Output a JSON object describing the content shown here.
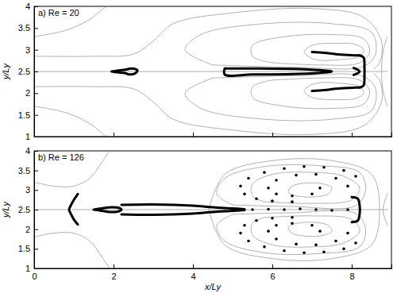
{
  "chart_data": [
    {
      "type": "line",
      "title": "a) Re = 20",
      "y_label": "y/Ly",
      "xlim": [
        0,
        9
      ],
      "ylim": [
        1,
        4
      ],
      "xticks": [
        0,
        2,
        4,
        6,
        8
      ],
      "yticks": [
        1,
        1.5,
        2,
        2.5,
        3,
        3.5,
        4
      ],
      "tick_labels": "y",
      "series": [
        {
          "type": "line",
          "color": "#a8a8a8",
          "line_style": "solid",
          "x": [
            0,
            8.9
          ],
          "values": [
            2.5,
            2.5
          ]
        },
        {
          "type": "line",
          "color": "#a8a8a8",
          "line_style": "solid",
          "x": [
            7.3,
            7.8,
            8.2,
            8.3,
            8.1,
            7.6,
            7.0,
            6.8,
            7.0,
            7.3
          ],
          "values": [
            2.75,
            2.78,
            2.85,
            3.0,
            3.12,
            3.15,
            3.1,
            2.95,
            2.8,
            2.75
          ]
        },
        {
          "type": "line",
          "color": "#a8a8a8",
          "line_style": "solid",
          "x": [
            7.3,
            7.8,
            8.2,
            8.3,
            8.1,
            7.6,
            7.0,
            6.8,
            7.0,
            7.3
          ],
          "values": [
            2.25,
            2.22,
            2.15,
            2.0,
            1.88,
            1.85,
            1.9,
            2.05,
            2.2,
            2.25
          ]
        },
        {
          "type": "line",
          "color": "#a8a8a8",
          "line_style": "solid",
          "x": [
            6.0,
            7.2,
            8.2,
            8.45,
            8.3,
            7.5,
            6.3,
            5.5,
            5.5,
            6.0
          ],
          "values": [
            2.7,
            2.65,
            2.7,
            2.95,
            3.25,
            3.35,
            3.3,
            3.1,
            2.85,
            2.7
          ]
        },
        {
          "type": "line",
          "color": "#a8a8a8",
          "line_style": "solid",
          "x": [
            6.0,
            7.2,
            8.2,
            8.45,
            8.3,
            7.5,
            6.3,
            5.5,
            5.5,
            6.0
          ],
          "values": [
            2.3,
            2.35,
            2.3,
            2.05,
            1.75,
            1.65,
            1.7,
            1.9,
            2.15,
            2.3
          ]
        },
        {
          "type": "line",
          "color": "#a8a8a8",
          "line_style": "solid",
          "x": [
            4.5,
            6.5,
            8.3,
            8.6,
            8.5,
            7.5,
            5.8,
            4.2,
            3.8,
            4.5
          ],
          "values": [
            2.65,
            2.6,
            2.62,
            2.9,
            3.4,
            3.6,
            3.6,
            3.35,
            3.0,
            2.65
          ]
        },
        {
          "type": "line",
          "color": "#a8a8a8",
          "line_style": "solid",
          "x": [
            4.5,
            6.5,
            8.3,
            8.6,
            8.5,
            7.5,
            5.8,
            4.2,
            3.8,
            4.5
          ],
          "values": [
            2.35,
            2.4,
            2.38,
            2.1,
            1.6,
            1.4,
            1.4,
            1.65,
            2.0,
            2.35
          ]
        },
        {
          "type": "line",
          "color": "#a8a8a8",
          "line_style": "solid",
          "x": [
            0,
            1.5,
            2.5,
            3.0,
            3.5,
            5.0,
            7.0,
            8.3,
            8.75,
            8.7,
            8.55
          ],
          "values": [
            2.85,
            2.85,
            2.9,
            3.2,
            3.6,
            3.85,
            3.95,
            3.75,
            3.2,
            2.7,
            2.55
          ]
        },
        {
          "type": "line",
          "color": "#a8a8a8",
          "line_style": "solid",
          "x": [
            0,
            1.5,
            2.5,
            3.0,
            3.5,
            5.0,
            7.0,
            8.3,
            8.75,
            8.7,
            8.55
          ],
          "values": [
            2.15,
            2.15,
            2.1,
            1.8,
            1.4,
            1.15,
            1.05,
            1.25,
            1.8,
            2.3,
            2.45
          ]
        },
        {
          "type": "line",
          "color": "#a8a8a8",
          "line_style": "solid",
          "x": [
            0,
            0.8,
            1.4,
            1.8
          ],
          "values": [
            3.3,
            3.45,
            3.7,
            4.0
          ]
        },
        {
          "type": "line",
          "color": "#a8a8a8",
          "line_style": "solid",
          "x": [
            0,
            0.8,
            1.4,
            1.8
          ],
          "values": [
            1.7,
            1.55,
            1.3,
            1.0
          ]
        },
        {
          "type": "line",
          "color": "#a8a8a8",
          "line_style": "solid",
          "x": [
            8.9,
            8.8,
            8.75,
            8.8,
            8.9
          ],
          "values": [
            3.3,
            3.0,
            2.5,
            2.0,
            1.7
          ]
        },
        {
          "type": "line",
          "color": "#000000",
          "line_style": "thick",
          "x": [
            1.95,
            2.1,
            2.3,
            2.45,
            2.6,
            2.55,
            2.4,
            2.3,
            2.1,
            1.95
          ],
          "values": [
            2.5,
            2.52,
            2.54,
            2.57,
            2.53,
            2.46,
            2.43,
            2.46,
            2.48,
            2.5
          ]
        },
        {
          "type": "line",
          "color": "#000000",
          "line_style": "thick",
          "x": [
            4.8,
            5.5,
            6.5,
            7.2,
            7.5,
            7.2,
            6.5,
            5.5,
            4.8,
            4.8
          ],
          "values": [
            2.57,
            2.57,
            2.56,
            2.53,
            2.5,
            2.47,
            2.44,
            2.43,
            2.43,
            2.57
          ]
        },
        {
          "type": "line",
          "color": "#000000",
          "line_style": "thick",
          "x": [
            7.0,
            7.3,
            7.6,
            7.9,
            8.1,
            8.2
          ],
          "values": [
            2.95,
            2.93,
            2.9,
            2.88,
            2.87,
            2.87
          ]
        },
        {
          "type": "line",
          "color": "#000000",
          "line_style": "thick",
          "x": [
            7.0,
            7.3,
            7.6,
            7.9,
            8.1,
            8.2
          ],
          "values": [
            2.05,
            2.07,
            2.1,
            2.12,
            2.13,
            2.13
          ]
        },
        {
          "type": "line",
          "color": "#000000",
          "line_style": "thick",
          "x": [
            8.2,
            8.3,
            8.32,
            8.32,
            8.3,
            8.2
          ],
          "values": [
            2.87,
            2.82,
            2.6,
            2.4,
            2.18,
            2.13
          ]
        },
        {
          "type": "line",
          "color": "#000000",
          "line_style": "thick",
          "x": [
            8.05,
            8.2,
            8.05
          ],
          "values": [
            2.58,
            2.5,
            2.42
          ]
        }
      ]
    },
    {
      "type": "line",
      "title": "b) Re = 126",
      "x_label": "x/Ly",
      "y_label": "y/Ly",
      "xlim": [
        0,
        9
      ],
      "ylim": [
        1,
        4
      ],
      "xticks": [
        0,
        2,
        4,
        6,
        8
      ],
      "yticks": [
        1,
        1.5,
        2,
        2.5,
        3,
        3.5,
        4
      ],
      "series": [
        {
          "type": "line",
          "color": "#a8a8a8",
          "line_style": "solid",
          "x": [
            0,
            8.9
          ],
          "values": [
            2.5,
            2.5
          ]
        },
        {
          "type": "line",
          "color": "#a8a8a8",
          "line_style": "solid",
          "x": [
            6.6,
            7.0,
            7.4,
            7.5,
            7.3,
            6.9,
            6.5,
            6.4,
            6.6
          ],
          "values": [
            2.85,
            2.82,
            2.9,
            3.05,
            3.15,
            3.18,
            3.1,
            2.95,
            2.85
          ]
        },
        {
          "type": "line",
          "color": "#a8a8a8",
          "line_style": "solid",
          "x": [
            6.6,
            7.0,
            7.4,
            7.5,
            7.3,
            6.9,
            6.5,
            6.4,
            6.6
          ],
          "values": [
            2.15,
            2.18,
            2.1,
            1.95,
            1.85,
            1.82,
            1.9,
            2.05,
            2.15
          ]
        },
        {
          "type": "line",
          "color": "#a8a8a8",
          "line_style": "solid",
          "x": [
            5.8,
            7.0,
            8.0,
            8.2,
            7.8,
            7.0,
            6.0,
            5.5,
            5.5,
            5.8
          ],
          "values": [
            2.7,
            2.66,
            2.75,
            3.05,
            3.35,
            3.45,
            3.4,
            3.15,
            2.85,
            2.7
          ]
        },
        {
          "type": "line",
          "color": "#a8a8a8",
          "line_style": "solid",
          "x": [
            5.8,
            7.0,
            8.0,
            8.2,
            7.8,
            7.0,
            6.0,
            5.5,
            5.5,
            5.8
          ],
          "values": [
            2.3,
            2.34,
            2.25,
            1.95,
            1.65,
            1.55,
            1.6,
            1.85,
            2.15,
            2.3
          ]
        },
        {
          "type": "line",
          "color": "#a8a8a8",
          "line_style": "solid",
          "x": [
            5.0,
            6.5,
            8.1,
            8.35,
            8.2,
            7.2,
            5.8,
            4.8,
            4.6,
            5.0
          ],
          "values": [
            2.62,
            2.58,
            2.6,
            3.0,
            3.45,
            3.62,
            3.6,
            3.3,
            2.9,
            2.62
          ]
        },
        {
          "type": "line",
          "color": "#a8a8a8",
          "line_style": "solid",
          "x": [
            5.0,
            6.5,
            8.1,
            8.35,
            8.2,
            7.2,
            5.8,
            4.8,
            4.6,
            5.0
          ],
          "values": [
            2.38,
            2.42,
            2.4,
            2.0,
            1.55,
            1.38,
            1.4,
            1.7,
            2.1,
            2.38
          ]
        },
        {
          "type": "line",
          "color": "#a8a8a8",
          "line_style": "solid",
          "x": [
            4.4,
            4.8,
            6.0,
            7.5,
            8.5,
            8.7,
            8.5,
            7.5,
            6.0,
            4.8,
            4.4
          ],
          "values": [
            2.5,
            3.4,
            3.75,
            3.75,
            3.4,
            2.5,
            1.6,
            1.25,
            1.25,
            1.6,
            2.5
          ]
        },
        {
          "type": "line",
          "color": "#a8a8a8",
          "line_style": "solid",
          "x": [
            0,
            0.5,
            1.0,
            1.4,
            1.7,
            1.9
          ],
          "values": [
            3.2,
            3.1,
            3.1,
            3.3,
            3.7,
            4.0
          ]
        },
        {
          "type": "line",
          "color": "#a8a8a8",
          "line_style": "solid",
          "x": [
            0,
            0.5,
            1.0,
            1.4,
            1.7,
            1.9
          ],
          "values": [
            1.8,
            1.9,
            1.9,
            1.7,
            1.3,
            1.0
          ]
        },
        {
          "type": "line",
          "color": "#a8a8a8",
          "line_style": "solid",
          "x": [
            8.9,
            8.8,
            8.8,
            8.9
          ],
          "values": [
            2.9,
            2.6,
            2.4,
            2.1
          ]
        },
        {
          "type": "line",
          "color": "#000000",
          "line_style": "thick",
          "x": [
            1.1,
            1.0,
            0.92,
            0.88,
            0.92,
            1.0,
            1.1
          ],
          "values": [
            2.9,
            2.75,
            2.6,
            2.5,
            2.4,
            2.25,
            2.12
          ]
        },
        {
          "type": "line",
          "color": "#000000",
          "line_style": "thick",
          "x": [
            1.5,
            1.7,
            1.95,
            2.15,
            2.2,
            2.1,
            1.9,
            1.7,
            1.5
          ],
          "values": [
            2.5,
            2.53,
            2.56,
            2.54,
            2.5,
            2.45,
            2.44,
            2.47,
            2.5
          ]
        },
        {
          "type": "line",
          "color": "#000000",
          "line_style": "thick",
          "x": [
            2.2,
            3.0,
            4.0,
            4.5,
            5.0,
            5.3
          ],
          "values": [
            2.62,
            2.63,
            2.6,
            2.56,
            2.53,
            2.51
          ]
        },
        {
          "type": "line",
          "color": "#000000",
          "line_style": "thick",
          "x": [
            2.2,
            3.0,
            4.0,
            4.5,
            5.0,
            5.3
          ],
          "values": [
            2.38,
            2.37,
            2.4,
            2.44,
            2.47,
            2.49
          ]
        },
        {
          "type": "line",
          "color": "#000000",
          "line_style": "thick",
          "x": [
            8.0,
            8.15,
            8.2,
            8.2,
            8.15,
            8.0
          ],
          "values": [
            2.82,
            2.78,
            2.6,
            2.4,
            2.22,
            2.18
          ]
        },
        {
          "type": "scatter",
          "color": "#000000",
          "marker": "circle",
          "x": [
            5.5,
            5.9,
            6.3,
            6.7,
            7.1,
            7.5,
            7.9,
            8.1,
            7.8,
            7.3,
            6.8,
            6.3,
            5.8,
            5.4,
            5.2,
            5.3,
            5.6,
            6.0,
            6.5,
            7.9,
            7.6,
            7.1,
            6.6,
            6.1,
            5.9,
            6.1,
            6.5,
            7.0,
            7.2,
            8.1,
            7.8,
            7.3,
            6.8,
            6.3,
            5.8,
            5.4,
            5.2,
            5.3,
            5.6,
            6.0,
            6.5,
            7.9,
            7.6,
            7.1,
            6.6,
            6.1,
            5.9,
            6.1,
            6.5,
            7.0,
            7.2
          ],
          "values": [
            2.5,
            2.51,
            2.5,
            2.52,
            2.5,
            2.48,
            2.5,
            3.35,
            3.5,
            3.58,
            3.6,
            3.55,
            3.45,
            3.3,
            3.1,
            2.9,
            2.78,
            2.72,
            2.7,
            3.1,
            3.3,
            3.4,
            3.38,
            3.25,
            3.05,
            2.9,
            2.85,
            2.9,
            3.05,
            1.65,
            1.5,
            1.42,
            1.4,
            1.45,
            1.55,
            1.7,
            1.9,
            2.1,
            2.22,
            2.28,
            2.3,
            1.9,
            1.7,
            1.6,
            1.62,
            1.75,
            1.95,
            2.1,
            2.15,
            2.1,
            1.95
          ]
        }
      ]
    }
  ]
}
